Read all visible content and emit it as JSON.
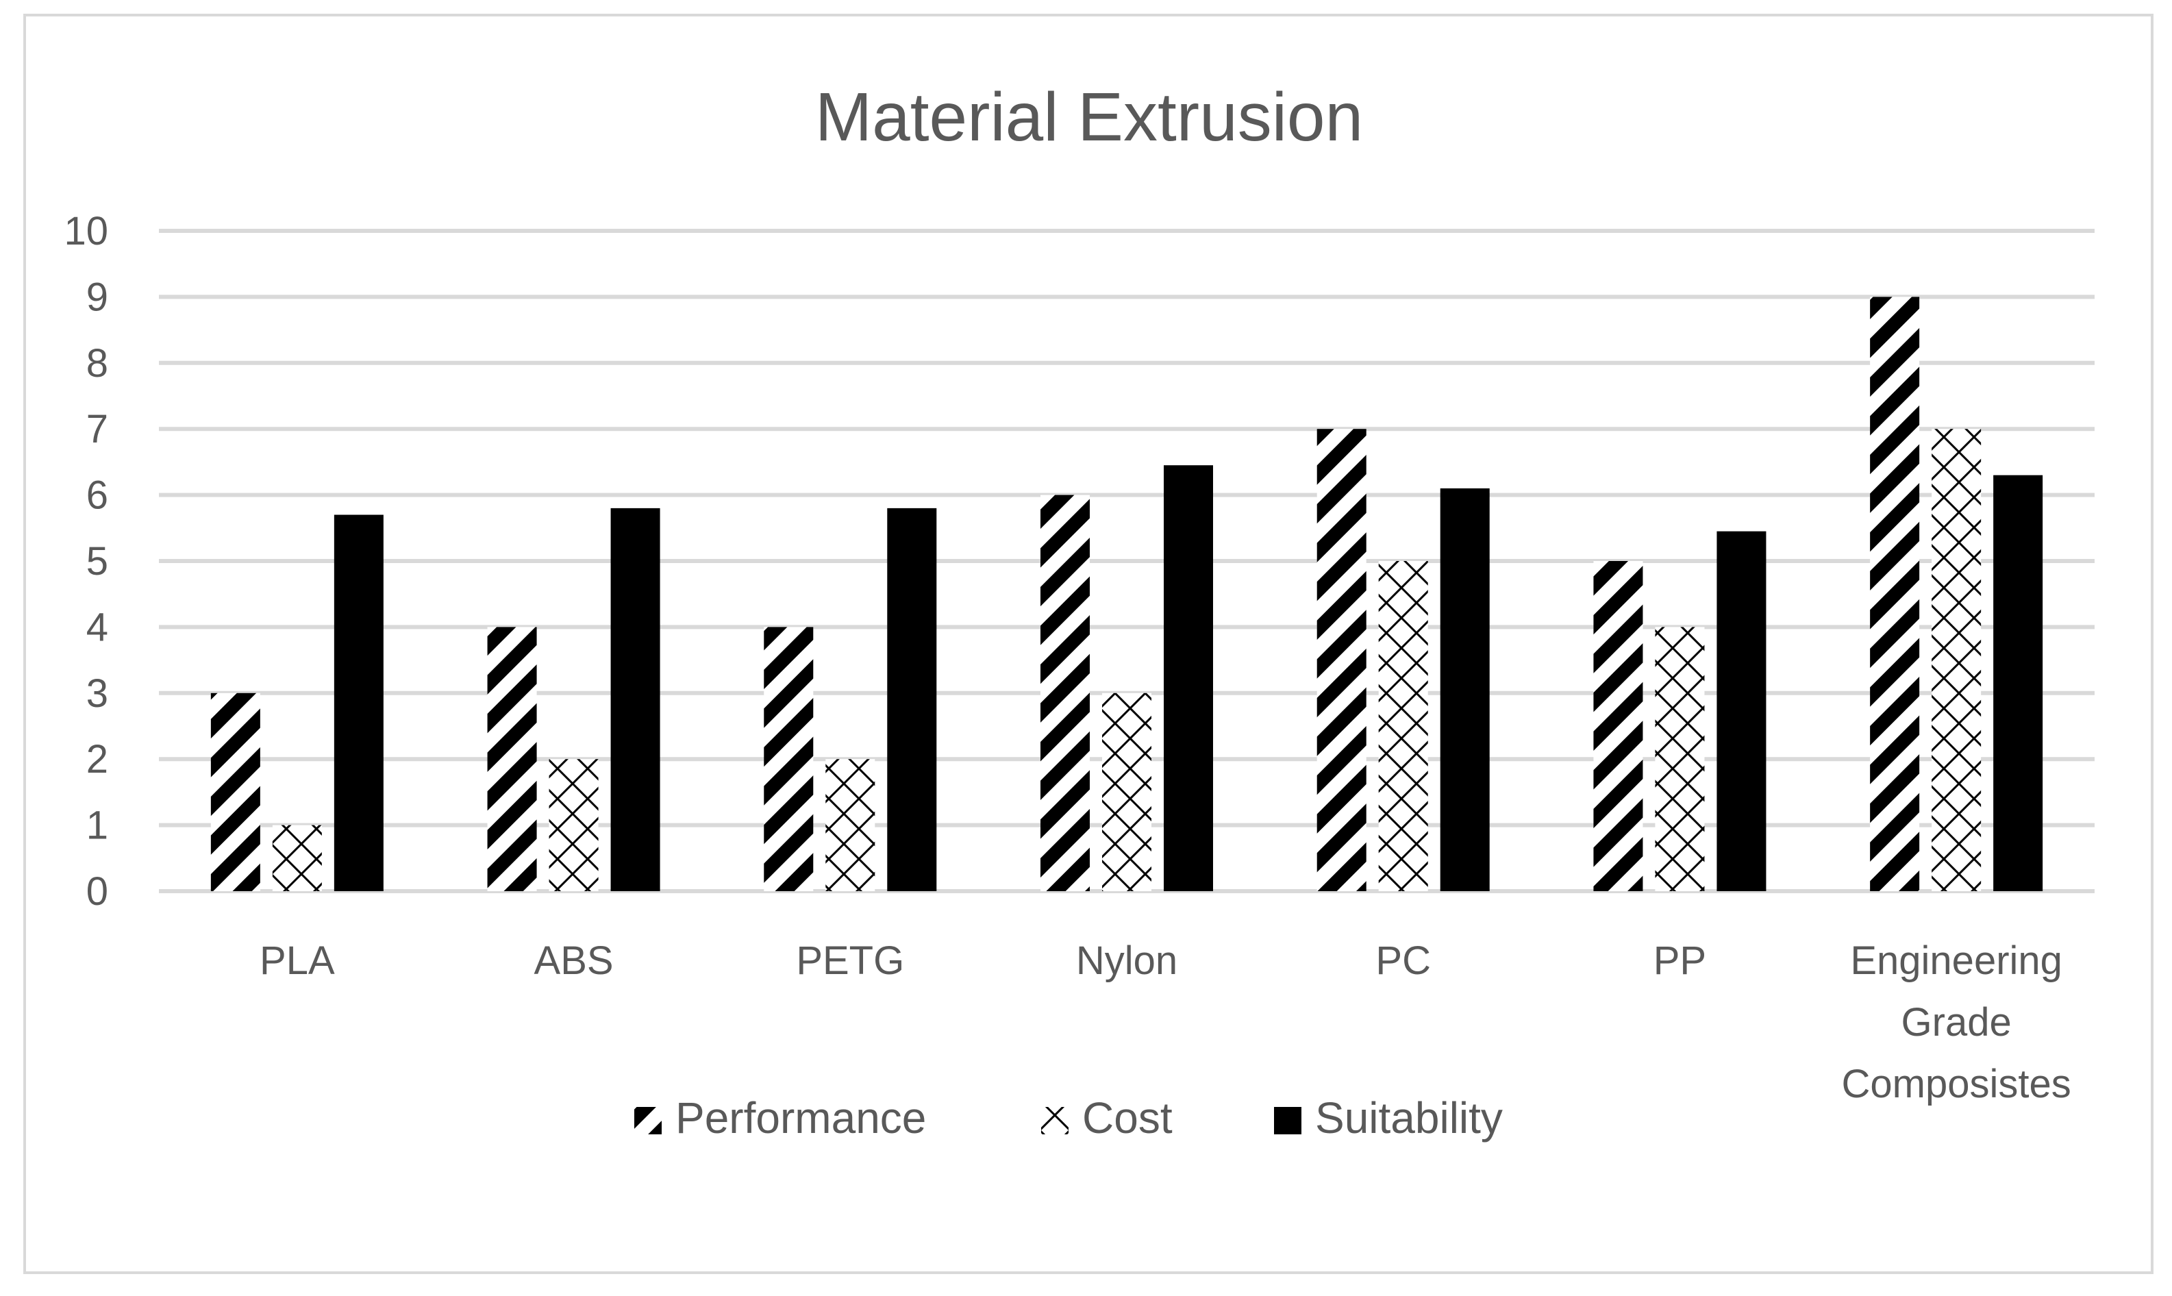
{
  "chart_data": {
    "type": "bar",
    "title": "Material Extrusion",
    "xlabel": "",
    "ylabel": "",
    "ylim": [
      0,
      10
    ],
    "yticks": [
      0,
      1,
      2,
      3,
      4,
      5,
      6,
      7,
      8,
      9,
      10
    ],
    "categories": [
      [
        "PLA"
      ],
      [
        "ABS"
      ],
      [
        "PETG"
      ],
      [
        "Nylon"
      ],
      [
        "PC"
      ],
      [
        "PP"
      ],
      [
        "Engineering",
        "Grade",
        "Composistes"
      ]
    ],
    "series": [
      {
        "name": "Performance",
        "pattern": "diagonal-stripes",
        "values": [
          3,
          4,
          4,
          6,
          7,
          5,
          9
        ]
      },
      {
        "name": "Cost",
        "pattern": "crosshatch",
        "values": [
          1,
          2,
          2,
          3,
          5,
          4,
          7
        ]
      },
      {
        "name": "Suitability",
        "pattern": "solid",
        "values": [
          5.7,
          5.8,
          5.8,
          6.45,
          6.1,
          5.45,
          6.3
        ]
      }
    ],
    "legend_position": "bottom",
    "grid": true,
    "colors": {
      "gridline": "#d9d9d9",
      "text": "#595959",
      "bar": "#000000",
      "background": "#ffffff"
    }
  }
}
